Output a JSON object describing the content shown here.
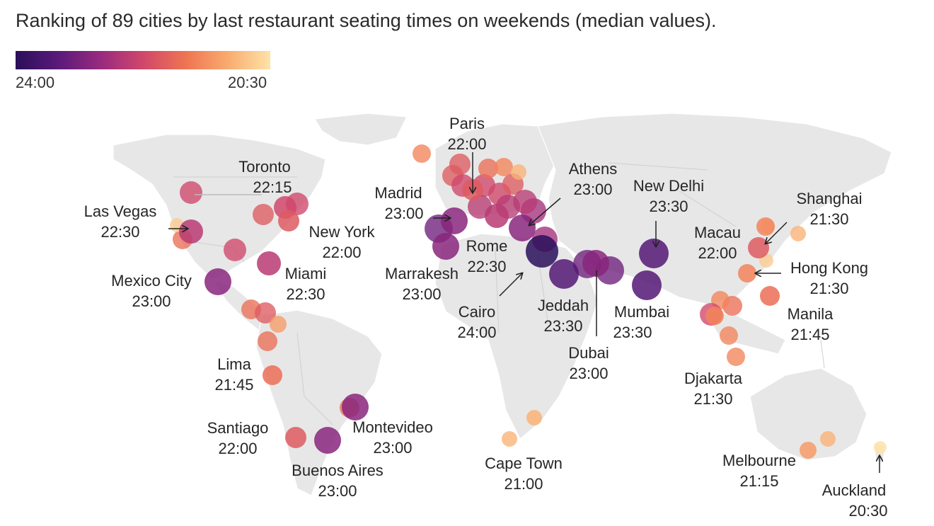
{
  "title": "Ranking of 89 cities by last restaurant seating times on weekends (median values).",
  "legend": {
    "left_label": "24:00",
    "right_label": "20:30",
    "colors": [
      "#2a0f5a",
      "#5b1a7a",
      "#9a2b7e",
      "#d0476b",
      "#ef7552",
      "#f9aa6e",
      "#fde3a8"
    ]
  },
  "cities": [
    {
      "name": "Paris",
      "time": "22:00"
    },
    {
      "name": "Athens",
      "time": "23:00"
    },
    {
      "name": "New Delhi",
      "time": "23:30"
    },
    {
      "name": "Shanghai",
      "time": "21:30"
    },
    {
      "name": "Toronto",
      "time": "22:15"
    },
    {
      "name": "Madrid",
      "time": "23:00"
    },
    {
      "name": "Las Vegas",
      "time": "22:30"
    },
    {
      "name": "New York",
      "time": "22:00"
    },
    {
      "name": "Macau",
      "time": "22:00"
    },
    {
      "name": "Rome",
      "time": "22:30"
    },
    {
      "name": "Hong Kong",
      "time": "21:30"
    },
    {
      "name": "Mexico City",
      "time": "23:00"
    },
    {
      "name": "Miami",
      "time": "22:30"
    },
    {
      "name": "Marrakesh",
      "time": "23:00"
    },
    {
      "name": "Manila",
      "time": "21:45"
    },
    {
      "name": "Jeddah",
      "time": "23:30"
    },
    {
      "name": "Mumbai",
      "time": "23:30"
    },
    {
      "name": "Cairo",
      "time": "24:00"
    },
    {
      "name": "Dubai",
      "time": "23:00"
    },
    {
      "name": "Lima",
      "time": "21:45"
    },
    {
      "name": "Djakarta",
      "time": "21:30"
    },
    {
      "name": "Santiago",
      "time": "22:00"
    },
    {
      "name": "Montevideo",
      "time": "23:00"
    },
    {
      "name": "Buenos Aires",
      "time": "23:00"
    },
    {
      "name": "Cape Town",
      "time": "21:00"
    },
    {
      "name": "Melbourne",
      "time": "21:15"
    },
    {
      "name": "Auckland",
      "time": "20:30"
    }
  ]
}
